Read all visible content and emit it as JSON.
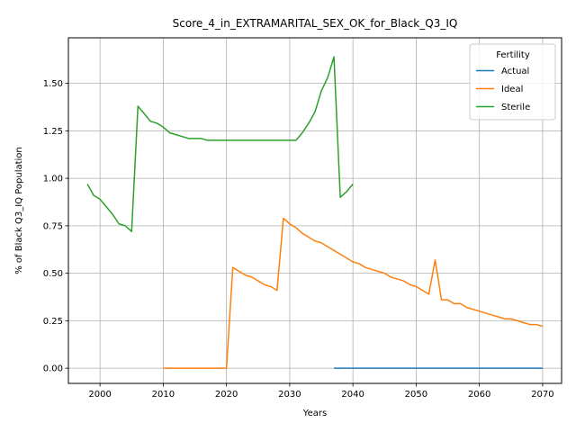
{
  "chart_data": {
    "type": "line",
    "title": "Score_4_in_EXTRAMARITAL_SEX_OK_for_Black_Q3_IQ",
    "xlabel": "Years",
    "ylabel": "% of Black Q3_IQ Population",
    "xlim": [
      1995,
      2073
    ],
    "ylim": [
      -0.08,
      1.74
    ],
    "xticks": [
      2000,
      2010,
      2020,
      2030,
      2040,
      2050,
      2060,
      2070
    ],
    "yticks": [
      0.0,
      0.25,
      0.5,
      0.75,
      1.0,
      1.25,
      1.5
    ],
    "ytick_labels": [
      "0.00",
      "0.25",
      "0.50",
      "0.75",
      "1.00",
      "1.25",
      "1.50"
    ],
    "grid": true,
    "legend": {
      "title": "Fertility",
      "placement": "top-right"
    },
    "series": [
      {
        "name": "Actual",
        "color": "#1f77b4",
        "x": [
          2037,
          2040,
          2045,
          2050,
          2055,
          2060,
          2065,
          2070
        ],
        "y": [
          0.0,
          0.0,
          0.0,
          0.0,
          0.0,
          0.0,
          0.0,
          0.0
        ]
      },
      {
        "name": "Ideal",
        "color": "#ff7f0e",
        "x": [
          2010,
          2011,
          2012,
          2013,
          2014,
          2015,
          2016,
          2017,
          2018,
          2019,
          2020,
          2021,
          2022,
          2023,
          2024,
          2025,
          2026,
          2027,
          2028,
          2029,
          2030,
          2031,
          2032,
          2033,
          2034,
          2035,
          2036,
          2037,
          2038,
          2039,
          2040,
          2041,
          2042,
          2043,
          2044,
          2045,
          2046,
          2047,
          2048,
          2049,
          2050,
          2051,
          2052,
          2053,
          2054,
          2055,
          2056,
          2057,
          2058,
          2059,
          2060,
          2061,
          2062,
          2063,
          2064,
          2065,
          2066,
          2067,
          2068,
          2069,
          2070
        ],
        "y": [
          0.0,
          0.0,
          0.0,
          0.0,
          0.0,
          0.0,
          0.0,
          0.0,
          0.0,
          0.0,
          0.0,
          0.53,
          0.51,
          0.49,
          0.48,
          0.46,
          0.44,
          0.43,
          0.41,
          0.79,
          0.76,
          0.74,
          0.71,
          0.69,
          0.67,
          0.66,
          0.64,
          0.62,
          0.6,
          0.58,
          0.56,
          0.55,
          0.53,
          0.52,
          0.51,
          0.5,
          0.48,
          0.47,
          0.46,
          0.44,
          0.43,
          0.41,
          0.39,
          0.57,
          0.36,
          0.36,
          0.34,
          0.34,
          0.32,
          0.31,
          0.3,
          0.29,
          0.28,
          0.27,
          0.26,
          0.26,
          0.25,
          0.24,
          0.23,
          0.23,
          0.22
        ]
      },
      {
        "name": "Sterile",
        "color": "#2ca02c",
        "x": [
          1998,
          1999,
          2000,
          2001,
          2002,
          2003,
          2004,
          2005,
          2006,
          2007,
          2008,
          2009,
          2010,
          2011,
          2012,
          2013,
          2014,
          2015,
          2016,
          2017,
          2018,
          2019,
          2020,
          2021,
          2022,
          2023,
          2024,
          2025,
          2026,
          2027,
          2028,
          2029,
          2030,
          2031,
          2032,
          2033,
          2034,
          2035,
          2036,
          2037,
          2038,
          2039,
          2040
        ],
        "y": [
          0.97,
          0.91,
          0.89,
          0.85,
          0.81,
          0.76,
          0.75,
          0.72,
          1.38,
          1.34,
          1.3,
          1.29,
          1.27,
          1.24,
          1.23,
          1.22,
          1.21,
          1.21,
          1.21,
          1.2,
          1.2,
          1.2,
          1.2,
          1.2,
          1.2,
          1.2,
          1.2,
          1.2,
          1.2,
          1.2,
          1.2,
          1.2,
          1.2,
          1.2,
          1.24,
          1.29,
          1.35,
          1.46,
          1.53,
          1.64,
          0.9,
          0.93,
          0.97
        ]
      }
    ]
  }
}
